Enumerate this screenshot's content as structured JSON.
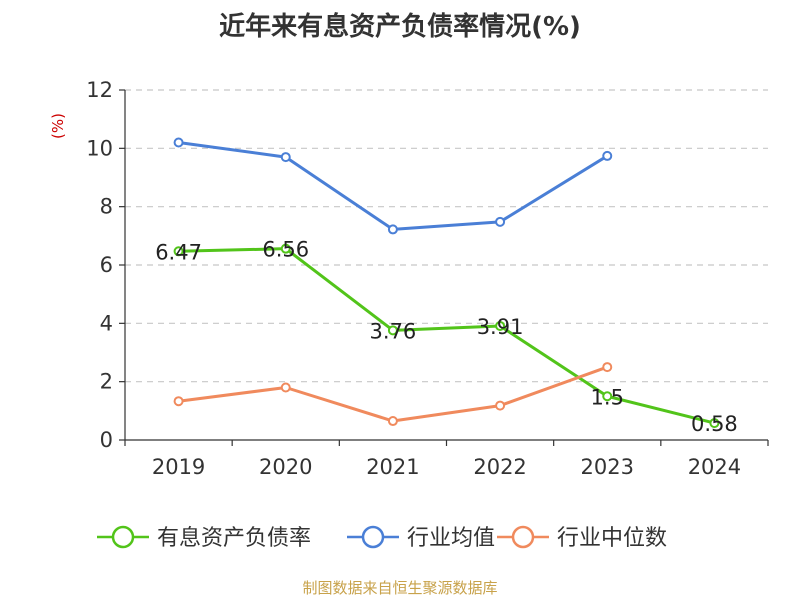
{
  "title": "近年来有息资产负债率情况(%)",
  "source": "制图数据来自恒生聚源数据库",
  "chart_data": {
    "type": "line",
    "title": "近年来有息资产负债率情况(%)",
    "ylabel": "(%)",
    "xlabel": "",
    "x": [
      "2019",
      "2020",
      "2021",
      "2022",
      "2023",
      "2024"
    ],
    "ylim": [
      0,
      12
    ],
    "yticks": [
      0,
      2,
      4,
      6,
      8,
      10,
      12
    ],
    "grid": true,
    "legend": "bottom",
    "series": [
      {
        "name": "有息资产负债率",
        "color": "#52c41a",
        "values": [
          6.47,
          6.56,
          3.76,
          3.91,
          1.5,
          0.58
        ],
        "labels": [
          "6.47",
          "6.56",
          "3.76",
          "3.91",
          "1.5",
          "0.58"
        ]
      },
      {
        "name": "行业均值",
        "color": "#4a7fd6",
        "values": [
          10.2,
          9.7,
          7.22,
          7.48,
          9.74,
          null
        ]
      },
      {
        "name": "行业中位数",
        "color": "#f08a5d",
        "values": [
          1.33,
          1.8,
          0.65,
          1.18,
          2.5,
          null
        ]
      }
    ]
  }
}
